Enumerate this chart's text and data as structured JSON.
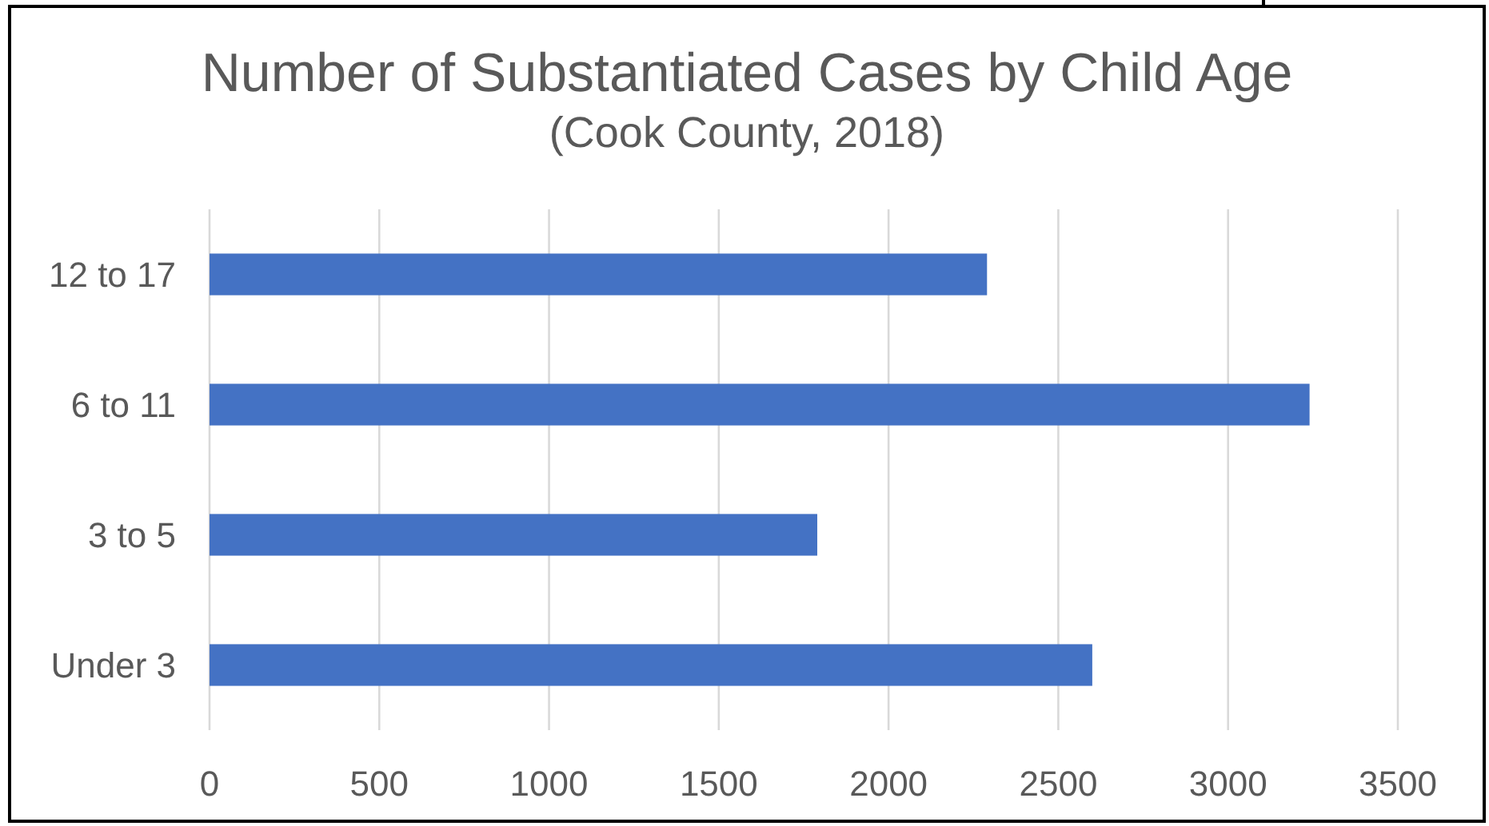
{
  "chart_data": {
    "type": "bar",
    "orientation": "horizontal",
    "title": "Number of Substantiated Cases by Child Age",
    "subtitle": "(Cook County, 2018)",
    "categories": [
      "12 to 17",
      "6 to 11",
      "3 to 5",
      "Under 3"
    ],
    "values": [
      2290,
      3240,
      1790,
      2600
    ],
    "color": "#4472c4",
    "xlim": [
      0,
      3500
    ],
    "xticks": [
      0,
      500,
      1000,
      1500,
      2000,
      2500,
      3000,
      3500
    ],
    "grid": "x"
  }
}
